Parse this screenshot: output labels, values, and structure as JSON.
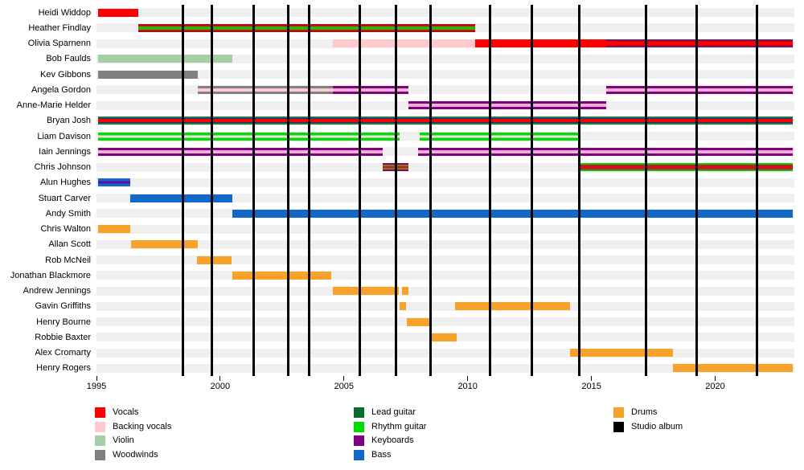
{
  "colors": {
    "background": "#ffffff",
    "row_track": "#efefef",
    "album_line": "#000000",
    "vocals_red": "#ff0000",
    "dark_red_stripe": "#c00028",
    "navy_stripe": "#2a2a8c",
    "backing_vocals_pink": "#ffc9ce",
    "violin_green": "#a6cfa6",
    "woodwinds_gray": "#808080",
    "lead_guitar_green": "#0b6b33",
    "rhythm_guitar_green": "#00dc00",
    "keyboards_purple": "#800080",
    "pink_on_purple_stripe": "#f0b0d0",
    "pale_stripe": "#efe0e4",
    "bass_blue": "#1168c8",
    "drums_orange": "#f8a22b"
  },
  "legend": {
    "columns": [
      [
        {
          "label": "Vocals",
          "color": "#ff0000"
        },
        {
          "label": "Backing vocals",
          "color": "#ffc9ce"
        },
        {
          "label": "Violin",
          "color": "#a6cfa6"
        },
        {
          "label": "Woodwinds",
          "color": "#808080"
        }
      ],
      [
        {
          "label": "Lead guitar",
          "color": "#0b6b33"
        },
        {
          "label": "Rhythm guitar",
          "color": "#00dc00"
        },
        {
          "label": "Keyboards",
          "color": "#800080"
        },
        {
          "label": "Bass",
          "color": "#1168c8"
        }
      ],
      [
        {
          "label": "Drums",
          "color": "#f8a22b"
        },
        {
          "label": "Studio album",
          "color": "#000000"
        }
      ]
    ]
  },
  "chart_data": {
    "type": "timeline",
    "title": "",
    "xlabel": "",
    "ylabel": "",
    "grid": false,
    "legend_position": "bottom",
    "x_range": [
      1995,
      2023.2
    ],
    "x_ticks": [
      1995,
      2000,
      2005,
      2010,
      2015,
      2020
    ],
    "album_lines_years": [
      1998.5,
      1999.65,
      2001.35,
      2002.75,
      2003.6,
      2005.65,
      2007.1,
      2008.5,
      2010.9,
      2012.6,
      2014.5,
      2017.2,
      2019.25,
      2021.7
    ],
    "members": [
      {
        "name": "Heidi Widdop",
        "bars": [
          {
            "start": 1995.05,
            "end": 1996.7,
            "roles": "Vocals",
            "stripes": [
              [
                "#ff0000",
                1
              ]
            ]
          }
        ]
      },
      {
        "name": "Heather Findlay",
        "bars": [
          {
            "start": 1996.7,
            "end": 2010.3,
            "roles": "Vocals, Rhythm guitar",
            "stripes": [
              [
                "#c00028",
                2
              ],
              [
                "#ff0000",
                1.2
              ],
              [
                "#00cc00",
                4
              ],
              [
                "#ff0000",
                1.2
              ],
              [
                "#c00028",
                2
              ]
            ]
          }
        ]
      },
      {
        "name": "Olivia Sparnenn",
        "bars": [
          {
            "start": 2004.55,
            "end": 2010.3,
            "roles": "Backing vocals",
            "stripes": [
              [
                "#ffc9ce",
                1
              ]
            ]
          },
          {
            "start": 2010.3,
            "end": 2015.6,
            "roles": "Vocals",
            "stripes": [
              [
                "#ff0000",
                1
              ]
            ]
          },
          {
            "start": 2015.6,
            "end": 2023.15,
            "roles": "Vocals",
            "stripes": [
              [
                "#2a2a8c",
                0.8
              ],
              [
                "#c00028",
                2.2
              ],
              [
                "#ff0000",
                4
              ],
              [
                "#c00028",
                2.2
              ],
              [
                "#2a2a8c",
                0.8
              ]
            ]
          }
        ]
      },
      {
        "name": "Bob Faulds",
        "bars": [
          {
            "start": 1995.05,
            "end": 2000.5,
            "roles": "Violin",
            "stripes": [
              [
                "#a6cfa6",
                1
              ]
            ]
          }
        ]
      },
      {
        "name": "Kev Gibbons",
        "bars": [
          {
            "start": 1995.05,
            "end": 1999.1,
            "roles": "Woodwinds",
            "stripes": [
              [
                "#808080",
                1
              ]
            ]
          }
        ]
      },
      {
        "name": "Angela Gordon",
        "bars": [
          {
            "start": 1999.1,
            "end": 2004.55,
            "roles": "Woodwinds, Backing vocals",
            "stripes": [
              [
                "#808080",
                3
              ],
              [
                "#ffc9ce",
                4
              ],
              [
                "#808080",
                3
              ]
            ]
          },
          {
            "start": 2004.55,
            "end": 2007.6,
            "roles": "Keyboards, Backing vocals",
            "stripes": [
              [
                "#800080",
                3
              ],
              [
                "#f0b0d0",
                4
              ],
              [
                "#800080",
                3
              ]
            ]
          },
          {
            "start": 2015.6,
            "end": 2023.15,
            "roles": "Keyboards, Backing vocals",
            "stripes": [
              [
                "#800080",
                3
              ],
              [
                "#f0b0d0",
                4
              ],
              [
                "#800080",
                3
              ]
            ]
          }
        ]
      },
      {
        "name": "Anne-Marie Helder",
        "bars": [
          {
            "start": 2007.6,
            "end": 2015.6,
            "roles": "Keyboards, Backing vocals",
            "stripes": [
              [
                "#800080",
                3
              ],
              [
                "#f0b0d0",
                4
              ],
              [
                "#800080",
                3
              ]
            ]
          }
        ]
      },
      {
        "name": "Bryan Josh",
        "bars": [
          {
            "start": 1995.05,
            "end": 2023.15,
            "roles": "Vocals, Lead guitar",
            "stripes": [
              [
                "#157f3d",
                2
              ],
              [
                "#2a2a8c",
                1.5
              ],
              [
                "#ff0000",
                4
              ],
              [
                "#2a2a8c",
                1.5
              ],
              [
                "#157f3d",
                2
              ]
            ]
          }
        ]
      },
      {
        "name": "Liam Davison",
        "bars": [
          {
            "start": 1995.05,
            "end": 2007.25,
            "roles": "Rhythm guitar",
            "stripes": [
              [
                "#00dc00",
                3
              ],
              [
                "#efe0e4",
                3
              ],
              [
                "#00dc00",
                3
              ]
            ]
          },
          {
            "start": 2008.05,
            "end": 2014.45,
            "roles": "Rhythm guitar",
            "stripes": [
              [
                "#00dc00",
                3
              ],
              [
                "#efe0e4",
                3
              ],
              [
                "#00dc00",
                3
              ]
            ]
          }
        ]
      },
      {
        "name": "Iain Jennings",
        "bars": [
          {
            "start": 1995.05,
            "end": 2006.55,
            "roles": "Keyboards",
            "stripes": [
              [
                "#800080",
                3
              ],
              [
                "#f0b0d0",
                3.5
              ],
              [
                "#800080",
                3
              ]
            ]
          },
          {
            "start": 2008.0,
            "end": 2023.15,
            "roles": "Keyboards",
            "stripes": [
              [
                "#800080",
                3
              ],
              [
                "#f0b0d0",
                3.5
              ],
              [
                "#800080",
                3
              ]
            ]
          }
        ]
      },
      {
        "name": "Chris Johnson",
        "bars": [
          {
            "start": 2006.55,
            "end": 2007.6,
            "roles": "Vocals, Rhythm guitar, Keyboards",
            "stripes": [
              [
                "#800080",
                2
              ],
              [
                "#55a030",
                2
              ],
              [
                "#cc2200",
                3
              ],
              [
                "#55a030",
                2
              ],
              [
                "#800080",
                2
              ]
            ]
          },
          {
            "start": 2014.45,
            "end": 2023.15,
            "roles": "Vocals, Rhythm guitar",
            "stripes": [
              [
                "#00cc00",
                2
              ],
              [
                "#d41224",
                5
              ],
              [
                "#00cc00",
                2
              ]
            ]
          }
        ]
      },
      {
        "name": "Alun Hughes",
        "bars": [
          {
            "start": 1995.05,
            "end": 1996.35,
            "roles": "Bass, Keyboards",
            "stripes": [
              [
                "#1168c8",
                3
              ],
              [
                "#5f0da8",
                3
              ],
              [
                "#1168c8",
                3
              ]
            ]
          }
        ]
      },
      {
        "name": "Stuart Carver",
        "bars": [
          {
            "start": 1996.35,
            "end": 2000.5,
            "roles": "Bass",
            "stripes": [
              [
                "#1168c8",
                1
              ]
            ]
          }
        ]
      },
      {
        "name": "Andy Smith",
        "bars": [
          {
            "start": 2000.5,
            "end": 2023.15,
            "roles": "Bass",
            "stripes": [
              [
                "#1168c8",
                1
              ]
            ]
          }
        ]
      },
      {
        "name": "Chris Walton",
        "bars": [
          {
            "start": 1995.05,
            "end": 1996.35,
            "roles": "Drums",
            "stripes": [
              [
                "#f8a22b",
                1
              ]
            ]
          }
        ]
      },
      {
        "name": "Allan Scott",
        "bars": [
          {
            "start": 1996.4,
            "end": 1999.1,
            "roles": "Drums",
            "stripes": [
              [
                "#f8a22b",
                1
              ]
            ]
          }
        ]
      },
      {
        "name": "Rob McNeil",
        "bars": [
          {
            "start": 1999.05,
            "end": 2000.45,
            "roles": "Drums",
            "stripes": [
              [
                "#f8a22b",
                1
              ]
            ]
          }
        ]
      },
      {
        "name": "Jonathan Blackmore",
        "bars": [
          {
            "start": 2000.5,
            "end": 2004.5,
            "roles": "Drums",
            "stripes": [
              [
                "#f8a22b",
                1
              ]
            ]
          }
        ]
      },
      {
        "name": "Andrew Jennings",
        "bars": [
          {
            "start": 2004.55,
            "end": 2007.2,
            "roles": "Drums",
            "stripes": [
              [
                "#f8a22b",
                1
              ]
            ]
          },
          {
            "start": 2007.35,
            "end": 2007.6,
            "roles": "Drums",
            "stripes": [
              [
                "#f8a22b",
                1
              ]
            ]
          }
        ]
      },
      {
        "name": "Gavin Griffiths",
        "bars": [
          {
            "start": 2007.25,
            "end": 2007.5,
            "roles": "Drums",
            "stripes": [
              [
                "#f8a22b",
                1
              ]
            ]
          },
          {
            "start": 2009.5,
            "end": 2014.15,
            "roles": "Drums",
            "stripes": [
              [
                "#f8a22b",
                1
              ]
            ]
          }
        ]
      },
      {
        "name": "Henry Bourne",
        "bars": [
          {
            "start": 2007.55,
            "end": 2008.5,
            "roles": "Drums",
            "stripes": [
              [
                "#f8a22b",
                1
              ]
            ]
          }
        ]
      },
      {
        "name": "Robbie Baxter",
        "bars": [
          {
            "start": 2008.5,
            "end": 2009.55,
            "roles": "Drums",
            "stripes": [
              [
                "#f8a22b",
                1
              ]
            ]
          }
        ]
      },
      {
        "name": "Alex Cromarty",
        "bars": [
          {
            "start": 2014.15,
            "end": 2018.3,
            "roles": "Drums",
            "stripes": [
              [
                "#f8a22b",
                1
              ]
            ]
          }
        ]
      },
      {
        "name": "Henry Rogers",
        "bars": [
          {
            "start": 2018.3,
            "end": 2023.15,
            "roles": "Drums",
            "stripes": [
              [
                "#f8a22b",
                1
              ]
            ]
          }
        ]
      }
    ]
  }
}
